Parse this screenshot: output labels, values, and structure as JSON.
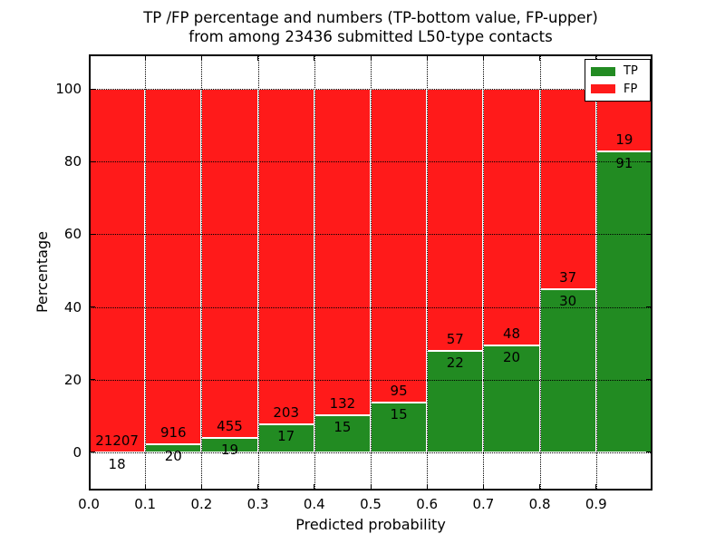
{
  "title": {
    "line1": "TP /FP percentage and numbers (TP-bottom value, FP-upper)",
    "line2": "from among 23436 submitted L50-type contacts"
  },
  "total_contacts": 23436,
  "chart_data": {
    "type": "bar",
    "stacked": true,
    "title": "TP /FP percentage and numbers (TP-bottom value, FP-upper) from among 23436 submitted L50-type contacts",
    "xlabel": "Predicted probability",
    "ylabel": "Percentage",
    "xlim": [
      0.0,
      1.0
    ],
    "ylim": [
      -10.5,
      109.5
    ],
    "x_ticks": [
      "0.0",
      "0.1",
      "0.2",
      "0.3",
      "0.4",
      "0.5",
      "0.6",
      "0.7",
      "0.8",
      "0.9"
    ],
    "y_ticks": [
      0,
      20,
      40,
      60,
      80,
      100
    ],
    "grid": "dotted black, drawn above bars",
    "bar_edge_color": "#ffffff",
    "bins": [
      {
        "range": "0.0-0.1",
        "tp": 18,
        "fp": 21207,
        "tp_percent": 0.08,
        "fp_percent": 99.92
      },
      {
        "range": "0.1-0.2",
        "tp": 20,
        "fp": 916,
        "tp_percent": 2.14,
        "fp_percent": 97.86
      },
      {
        "range": "0.2-0.3",
        "tp": 19,
        "fp": 455,
        "tp_percent": 4.01,
        "fp_percent": 95.99
      },
      {
        "range": "0.3-0.4",
        "tp": 17,
        "fp": 203,
        "tp_percent": 7.73,
        "fp_percent": 92.27
      },
      {
        "range": "0.4-0.5",
        "tp": 15,
        "fp": 132,
        "tp_percent": 10.2,
        "fp_percent": 89.8
      },
      {
        "range": "0.5-0.6",
        "tp": 15,
        "fp": 95,
        "tp_percent": 13.64,
        "fp_percent": 86.36
      },
      {
        "range": "0.6-0.7",
        "tp": 22,
        "fp": 57,
        "tp_percent": 27.85,
        "fp_percent": 72.15
      },
      {
        "range": "0.7-0.8",
        "tp": 20,
        "fp": 48,
        "tp_percent": 29.41,
        "fp_percent": 70.59
      },
      {
        "range": "0.8-0.9",
        "tp": 30,
        "fp": 37,
        "tp_percent": 44.78,
        "fp_percent": 55.22
      },
      {
        "range": "0.9-1.0",
        "tp": 91,
        "fp": 19,
        "tp_percent": 82.73,
        "fp_percent": 17.27
      }
    ],
    "series": [
      {
        "name": "TP",
        "color": "#228b22",
        "values": [
          18,
          20,
          19,
          17,
          15,
          15,
          22,
          20,
          30,
          91
        ]
      },
      {
        "name": "FP",
        "color": "#ff1a1a",
        "values": [
          21207,
          916,
          455,
          203,
          132,
          95,
          57,
          48,
          37,
          19
        ]
      }
    ],
    "legend": {
      "position": "upper right",
      "entries": [
        {
          "label": "TP",
          "color": "#228b22"
        },
        {
          "label": "FP",
          "color": "#ff1a1a"
        }
      ]
    }
  }
}
